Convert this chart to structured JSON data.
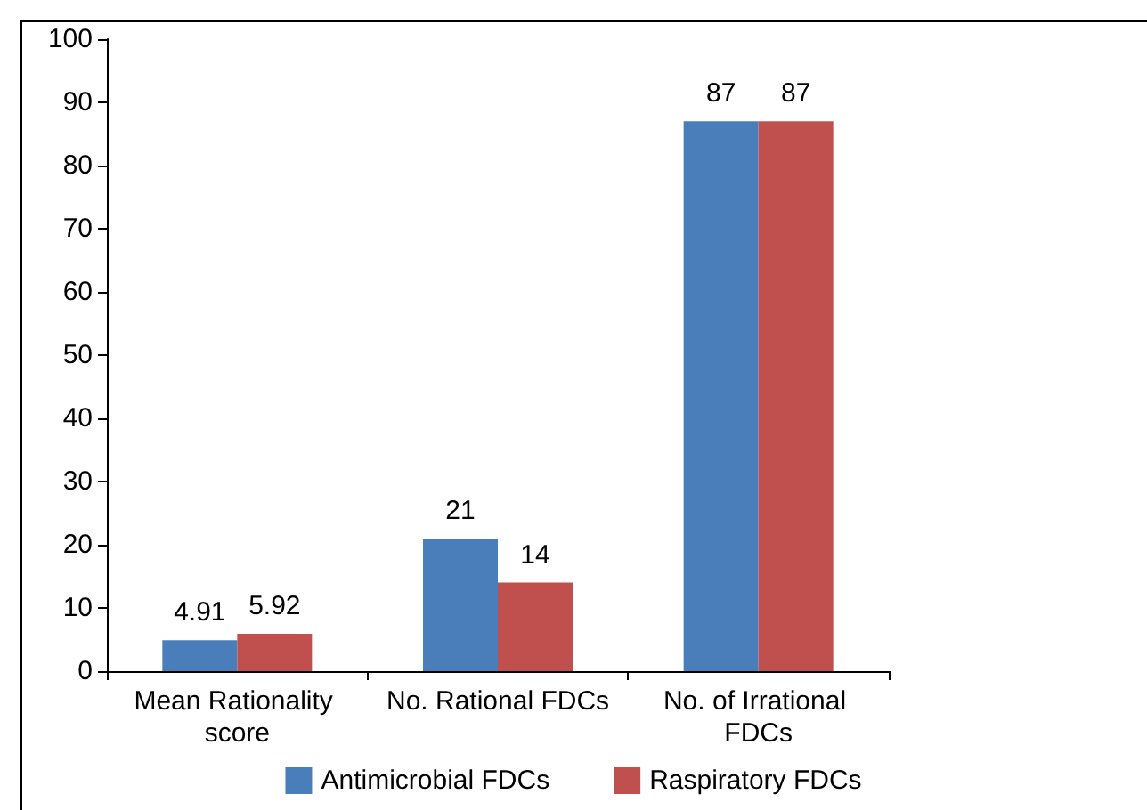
{
  "chart_data": {
    "type": "bar",
    "categories": [
      "Mean Rationality score",
      "No. Rational FDCs",
      "No. of Irrational FDCs"
    ],
    "series": [
      {
        "name": "Antimicrobial FDCs",
        "color": "#4a7ebb",
        "values": [
          4.91,
          21,
          87
        ]
      },
      {
        "name": "Raspiratory FDCs",
        "color": "#c0504d",
        "values": [
          5.92,
          14,
          87
        ]
      }
    ],
    "ylim": [
      0,
      100
    ],
    "yticks": [
      0,
      10,
      20,
      30,
      40,
      50,
      60,
      70,
      80,
      90,
      100
    ],
    "grid": false,
    "legend": "bottom",
    "data_labels": true
  }
}
